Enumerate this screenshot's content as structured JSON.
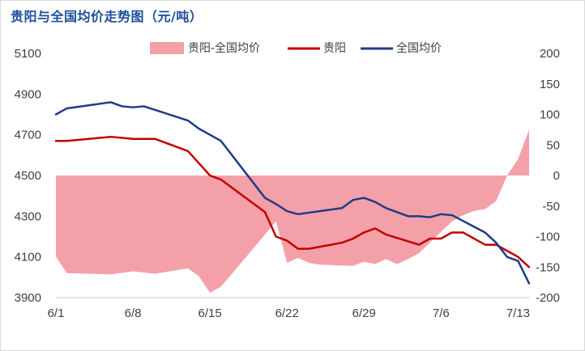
{
  "title": "贵阳与全国均价走势图（元/吨）",
  "colors": {
    "area": "#f4a0a8",
    "guiyang": "#c00000",
    "national": "#1f3c88",
    "text": "#404040"
  },
  "chart_data": {
    "type": "line",
    "title": "贵阳与全国均价走势图（元/吨）",
    "grid": false,
    "legend_position": "top",
    "x_ticks": [
      0,
      7,
      14,
      21,
      28,
      35,
      42
    ],
    "x_tick_labels": [
      "6/1",
      "6/8",
      "6/15",
      "6/22",
      "6/29",
      "7/6",
      "7/13"
    ],
    "y_left": {
      "ylim": [
        3900,
        5100
      ],
      "ticks": [
        3900,
        4100,
        4300,
        4500,
        4700,
        4900,
        5100
      ]
    },
    "y_right": {
      "ylim": [
        -200,
        200
      ],
      "ticks": [
        -200,
        -150,
        -100,
        -50,
        0,
        50,
        100,
        150,
        200
      ]
    },
    "series": [
      {
        "name": "贵阳-全国均价",
        "type": "area",
        "axis": "right",
        "x": [
          0,
          1,
          5,
          7,
          9,
          12,
          13,
          14,
          15,
          16,
          20,
          21,
          22,
          23,
          24,
          27,
          28,
          29,
          30,
          31,
          32,
          33,
          36,
          37,
          38,
          39,
          40,
          41,
          42,
          43
        ],
        "values": [
          -133,
          -160,
          -162,
          -157,
          -161,
          -152,
          -165,
          -192,
          -182,
          -161,
          -75,
          -143,
          -135,
          -143,
          -146,
          -148,
          -141,
          -145,
          -137,
          -145,
          -137,
          -127,
          -75,
          -65,
          -58,
          -55,
          -42,
          0,
          27,
          75
        ]
      },
      {
        "name": "贵阳",
        "type": "line",
        "axis": "left",
        "x": [
          0,
          1,
          5,
          7,
          9,
          12,
          14,
          15,
          19,
          20,
          21,
          22,
          23,
          26,
          27,
          28,
          29,
          30,
          33,
          34,
          35,
          36,
          37,
          38,
          39,
          40,
          41,
          42,
          43
        ],
        "values": [
          4670,
          4670,
          4690,
          4680,
          4680,
          4620,
          4500,
          4480,
          4320,
          4200,
          4180,
          4140,
          4140,
          4170,
          4190,
          4220,
          4240,
          4210,
          4160,
          4190,
          4190,
          4220,
          4220,
          4190,
          4160,
          4160,
          4130,
          4100,
          4050
        ]
      },
      {
        "name": "全国均价",
        "type": "line",
        "axis": "left",
        "x": [
          0,
          1,
          5,
          6,
          7,
          8,
          12,
          13,
          15,
          19,
          20,
          21,
          22,
          26,
          27,
          28,
          29,
          30,
          32,
          33,
          34,
          35,
          36,
          39,
          40,
          41,
          42,
          43
        ],
        "values": [
          4800,
          4830,
          4860,
          4840,
          4835,
          4840,
          4770,
          4730,
          4670,
          4390,
          4360,
          4325,
          4310,
          4340,
          4380,
          4390,
          4370,
          4340,
          4300,
          4300,
          4295,
          4310,
          4305,
          4220,
          4170,
          4100,
          4080,
          3970
        ]
      }
    ]
  }
}
